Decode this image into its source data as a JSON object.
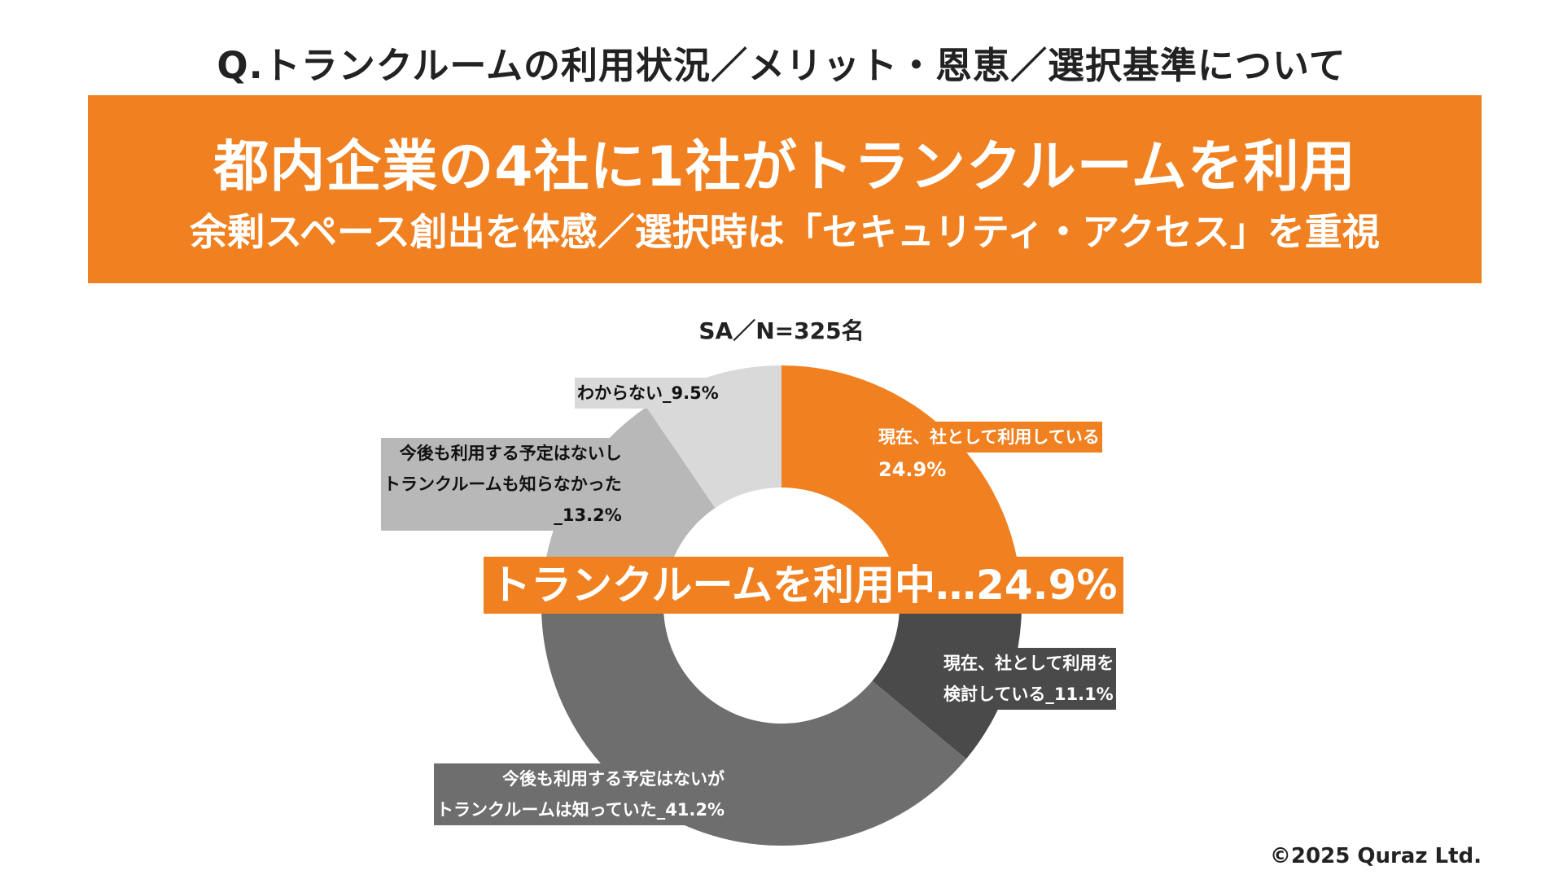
{
  "question": "Q.トランクルームの利用状況／メリット・恩恵／選択基準について",
  "headline": "都内企業の4社に1社がトランクルームを利用",
  "subheadline": "余剰スペース創出を体感／選択時は「セキュリティ・アクセス」を重視",
  "sample_note": "SA／N=325名",
  "callout": "トランクルームを利用中…24.9%",
  "copyright": "©2025 Quraz Ltd.",
  "labels": {
    "current_line1": "現在、社として利用している",
    "current_line2": "24.9%",
    "consider_line1": "現在、社として利用を",
    "consider_line2": "検討している_11.1%",
    "knew_line1": "今後も利用する予定はないが",
    "knew_line2": "トランクルームは知っていた_41.2%",
    "unknown_line1": "今後も利用する予定はないし",
    "unknown_line2": "トランクルームも知らなかった",
    "unknown_line3": "_13.2%",
    "dk_line1": "わからない_9.5%"
  },
  "chart_data": {
    "type": "pie",
    "subtype": "donut",
    "title": "SA／N=325名",
    "unit": "%",
    "categories": [
      "現在、社として利用している",
      "現在、社として利用を検討している",
      "今後も利用する予定はないがトランクルームは知っていた",
      "今後も利用する予定はないしトランクルームも知らなかった",
      "わからない"
    ],
    "values": [
      24.9,
      11.1,
      41.2,
      13.2,
      9.5
    ],
    "colors": [
      "#f08020",
      "#4a4a4a",
      "#6e6e6e",
      "#b8b8b8",
      "#d9d9d9"
    ],
    "start": "12 o'clock",
    "direction": "clockwise"
  }
}
